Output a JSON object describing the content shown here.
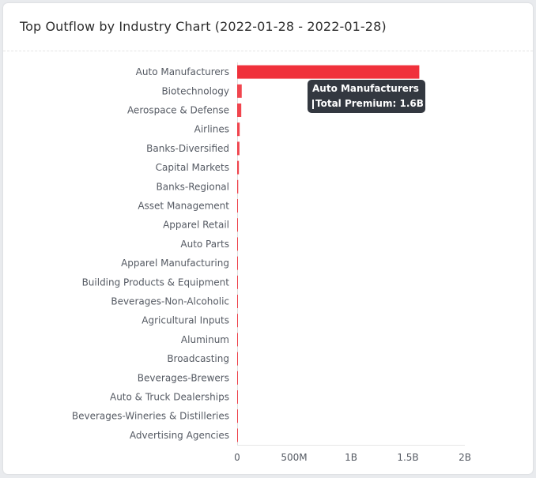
{
  "card": {
    "title": "Top Outflow by Industry Chart (2022-01-28 - 2022-01-28)"
  },
  "colors": {
    "bar": "#f0313b",
    "tooltip_bg": "#333840"
  },
  "tooltip": {
    "title": "Auto Manufacturers",
    "series_label": "Total Premium",
    "value_text": "1.6B"
  },
  "chart_data": {
    "type": "bar",
    "orientation": "horizontal",
    "title": "Top Outflow by Industry Chart (2022-01-28 - 2022-01-28)",
    "categories": [
      "Auto Manufacturers",
      "Biotechnology",
      "Aerospace & Defense",
      "Airlines",
      "Banks-Diversified",
      "Capital Markets",
      "Banks-Regional",
      "Asset Management",
      "Apparel Retail",
      "Auto Parts",
      "Apparel Manufacturing",
      "Building Products & Equipment",
      "Beverages-Non-Alcoholic",
      "Agricultural Inputs",
      "Aluminum",
      "Broadcasting",
      "Beverages-Brewers",
      "Auto & Truck Dealerships",
      "Beverages-Wineries & Distilleries",
      "Advertising Agencies"
    ],
    "series": [
      {
        "name": "Total Premium",
        "values": [
          1600000000,
          40000000,
          36000000,
          22000000,
          20000000,
          15000000,
          9000000,
          7000000,
          6000000,
          5000000,
          5000000,
          4000000,
          3500000,
          3000000,
          2000000,
          1500000,
          1200000,
          1000000,
          800000,
          500000
        ]
      }
    ],
    "x_ticks": [
      {
        "value": 0,
        "label": "0"
      },
      {
        "value": 500000000,
        "label": "500M"
      },
      {
        "value": 1000000000,
        "label": "1B"
      },
      {
        "value": 1500000000,
        "label": "1.5B"
      },
      {
        "value": 2000000000,
        "label": "2B"
      }
    ],
    "xlim": [
      0,
      2000000000
    ],
    "grid": false,
    "legend": "none"
  }
}
